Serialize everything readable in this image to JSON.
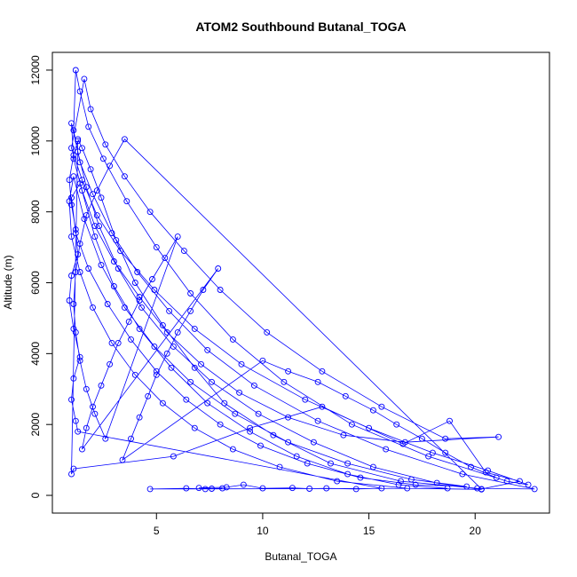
{
  "chart_data": {
    "type": "line",
    "title": "ATOM2 Southbound Butanal_TOGA",
    "xlabel": "Butanal_TOGA",
    "ylabel": "Altitude (m)",
    "xlim": [
      0.1,
      23.5
    ],
    "ylim": [
      -500,
      12500
    ],
    "xticks": [
      5,
      10,
      15,
      20
    ],
    "yticks": [
      0,
      2000,
      4000,
      6000,
      8000,
      10000,
      12000
    ],
    "line_color": "#0000ff",
    "marker": "open-circle",
    "grid": false,
    "legend": "none",
    "series": [
      {
        "points": [
          [
            1.3,
            10050
          ],
          [
            1.5,
            9800
          ],
          [
            1.9,
            9200
          ],
          [
            2.4,
            8400
          ],
          [
            3.1,
            7200
          ],
          [
            4.0,
            6000
          ],
          [
            5.3,
            4800
          ],
          [
            6.8,
            3600
          ],
          [
            8.2,
            2600
          ],
          [
            10.5,
            1700
          ],
          [
            13.2,
            900
          ],
          [
            16.5,
            400
          ],
          [
            20.1,
            200
          ],
          [
            22.8,
            180
          ],
          [
            19.4,
            600
          ],
          [
            15.8,
            1300
          ],
          [
            12.6,
            2100
          ],
          [
            9.6,
            3100
          ],
          [
            7.4,
            4100
          ],
          [
            5.6,
            5200
          ],
          [
            4.1,
            6300
          ],
          [
            2.9,
            7400
          ],
          [
            2.0,
            8500
          ],
          [
            1.4,
            9400
          ],
          [
            1.1,
            10300
          ],
          [
            1.2,
            12000
          ],
          [
            1.4,
            11400
          ],
          [
            1.8,
            10400
          ],
          [
            2.5,
            9500
          ],
          [
            3.6,
            8300
          ],
          [
            5.0,
            7000
          ],
          [
            6.6,
            5700
          ],
          [
            8.6,
            4400
          ],
          [
            11.0,
            3200
          ],
          [
            14.2,
            2000
          ],
          [
            17.8,
            1100
          ],
          [
            21.5,
            400
          ],
          [
            22.5,
            300
          ],
          [
            20.6,
            700
          ],
          [
            18.0,
            1200
          ],
          [
            15.0,
            1900
          ],
          [
            12.0,
            2700
          ],
          [
            9.0,
            3700
          ],
          [
            6.8,
            4700
          ],
          [
            4.9,
            5800
          ],
          [
            3.3,
            6900
          ],
          [
            2.2,
            7900
          ],
          [
            1.5,
            8900
          ],
          [
            1.0,
            9800
          ],
          [
            1.6,
            11750
          ],
          [
            1.9,
            10900
          ],
          [
            2.6,
            9900
          ],
          [
            3.5,
            9000
          ],
          [
            4.7,
            8000
          ],
          [
            6.3,
            6900
          ],
          [
            8.0,
            5800
          ],
          [
            10.2,
            4600
          ],
          [
            12.8,
            3500
          ],
          [
            15.6,
            2500
          ],
          [
            18.6,
            1600
          ],
          [
            21.1,
            1650
          ],
          [
            16.7,
            1500
          ],
          [
            13.8,
            1700
          ],
          [
            11.2,
            2200
          ],
          [
            8.9,
            2900
          ],
          [
            7.1,
            3700
          ],
          [
            5.5,
            4600
          ],
          [
            4.2,
            5600
          ],
          [
            3.0,
            6600
          ],
          [
            2.1,
            7600
          ],
          [
            1.5,
            8600
          ],
          [
            1.1,
            9500
          ],
          [
            1.0,
            10500
          ],
          [
            1.3,
            9700
          ],
          [
            1.7,
            8700
          ],
          [
            2.3,
            7600
          ],
          [
            3.2,
            6400
          ],
          [
            4.3,
            5300
          ],
          [
            5.8,
            4200
          ],
          [
            7.6,
            3200
          ],
          [
            9.8,
            2300
          ],
          [
            12.4,
            1500
          ],
          [
            15.2,
            800
          ],
          [
            18.2,
            350
          ],
          [
            20.3,
            170
          ],
          [
            16.8,
            200
          ],
          [
            13.5,
            400
          ],
          [
            10.8,
            800
          ],
          [
            8.6,
            1300
          ],
          [
            6.8,
            1900
          ],
          [
            5.3,
            2600
          ],
          [
            4.0,
            3400
          ],
          [
            2.9,
            4300
          ],
          [
            2.0,
            5300
          ],
          [
            1.4,
            6300
          ],
          [
            1.0,
            7300
          ],
          [
            0.9,
            8300
          ],
          [
            1.1,
            9000
          ],
          [
            1.6,
            7800
          ],
          [
            2.4,
            6500
          ],
          [
            3.5,
            5300
          ],
          [
            4.9,
            4200
          ],
          [
            6.6,
            3200
          ],
          [
            8.7,
            2300
          ],
          [
            11.2,
            1500
          ],
          [
            14.0,
            900
          ],
          [
            17.0,
            450
          ],
          [
            19.6,
            250
          ],
          [
            17.2,
            300
          ],
          [
            14.6,
            500
          ],
          [
            12.1,
            900
          ],
          [
            9.9,
            1400
          ],
          [
            8.0,
            2000
          ],
          [
            6.4,
            2700
          ],
          [
            5.0,
            3500
          ],
          [
            3.8,
            4400
          ],
          [
            2.7,
            5400
          ],
          [
            1.8,
            6400
          ],
          [
            1.2,
            7400
          ],
          [
            1.0,
            8400
          ],
          [
            1.4,
            8800
          ],
          [
            2.1,
            7300
          ],
          [
            3.0,
            5900
          ],
          [
            4.2,
            4700
          ],
          [
            5.7,
            3600
          ],
          [
            7.4,
            2600
          ],
          [
            9.4,
            1800
          ],
          [
            11.6,
            1100
          ],
          [
            14.0,
            600
          ],
          [
            16.4,
            300
          ],
          [
            18.7,
            200
          ],
          [
            4.7,
            180
          ],
          [
            6.4,
            200
          ],
          [
            7.3,
            180
          ],
          [
            8.1,
            200
          ],
          [
            7.6,
            190
          ],
          [
            7.0,
            210
          ],
          [
            8.3,
            230
          ],
          [
            9.1,
            300
          ],
          [
            10.0,
            200
          ],
          [
            11.4,
            210
          ],
          [
            12.2,
            190
          ],
          [
            13.0,
            200
          ],
          [
            14.4,
            180
          ],
          [
            15.6,
            200
          ],
          [
            1.3,
            1800
          ],
          [
            1.2,
            2100
          ],
          [
            1.0,
            2700
          ],
          [
            1.1,
            3300
          ],
          [
            1.4,
            3900
          ],
          [
            1.1,
            4700
          ],
          [
            0.9,
            5500
          ],
          [
            1.0,
            6200
          ],
          [
            1.3,
            6800
          ],
          [
            1.2,
            7500
          ],
          [
            1.0,
            8200
          ],
          [
            0.9,
            8900
          ],
          [
            1.1,
            9600
          ],
          [
            1.3,
            10000
          ],
          [
            1.0,
            600
          ],
          [
            1.1,
            750
          ],
          [
            5.8,
            1100
          ],
          [
            9.4,
            1900
          ],
          [
            12.8,
            2500
          ],
          [
            16.6,
            1450
          ],
          [
            18.8,
            2100
          ],
          [
            20.5,
            650
          ],
          [
            22.1,
            400
          ],
          [
            20.3,
            180
          ],
          [
            3.5,
            10050
          ],
          [
            2.8,
            9300
          ],
          [
            2.2,
            8600
          ],
          [
            1.7,
            7900
          ],
          [
            1.4,
            7100
          ],
          [
            1.2,
            6300
          ],
          [
            1.1,
            5400
          ],
          [
            1.2,
            4600
          ],
          [
            1.4,
            3800
          ],
          [
            1.7,
            3000
          ],
          [
            2.1,
            2300
          ],
          [
            2.6,
            1600
          ],
          [
            6.0,
            7300
          ],
          [
            5.4,
            6700
          ],
          [
            4.8,
            6100
          ],
          [
            4.2,
            5500
          ],
          [
            3.7,
            4900
          ],
          [
            3.2,
            4300
          ],
          [
            2.8,
            3700
          ],
          [
            2.4,
            3100
          ],
          [
            2.0,
            2500
          ],
          [
            1.7,
            1900
          ],
          [
            1.5,
            1300
          ],
          [
            7.9,
            6400
          ],
          [
            7.2,
            5800
          ],
          [
            6.6,
            5200
          ],
          [
            6.0,
            4600
          ],
          [
            5.5,
            4000
          ],
          [
            5.0,
            3400
          ],
          [
            4.6,
            2800
          ],
          [
            4.2,
            2200
          ],
          [
            3.8,
            1600
          ],
          [
            3.4,
            1000
          ],
          [
            10.0,
            3800
          ],
          [
            11.2,
            3500
          ],
          [
            12.6,
            3200
          ],
          [
            13.9,
            2800
          ],
          [
            15.2,
            2400
          ],
          [
            16.3,
            2000
          ],
          [
            17.5,
            1600
          ],
          [
            18.6,
            1200
          ],
          [
            19.8,
            800
          ],
          [
            21.0,
            500
          ]
        ]
      }
    ]
  }
}
